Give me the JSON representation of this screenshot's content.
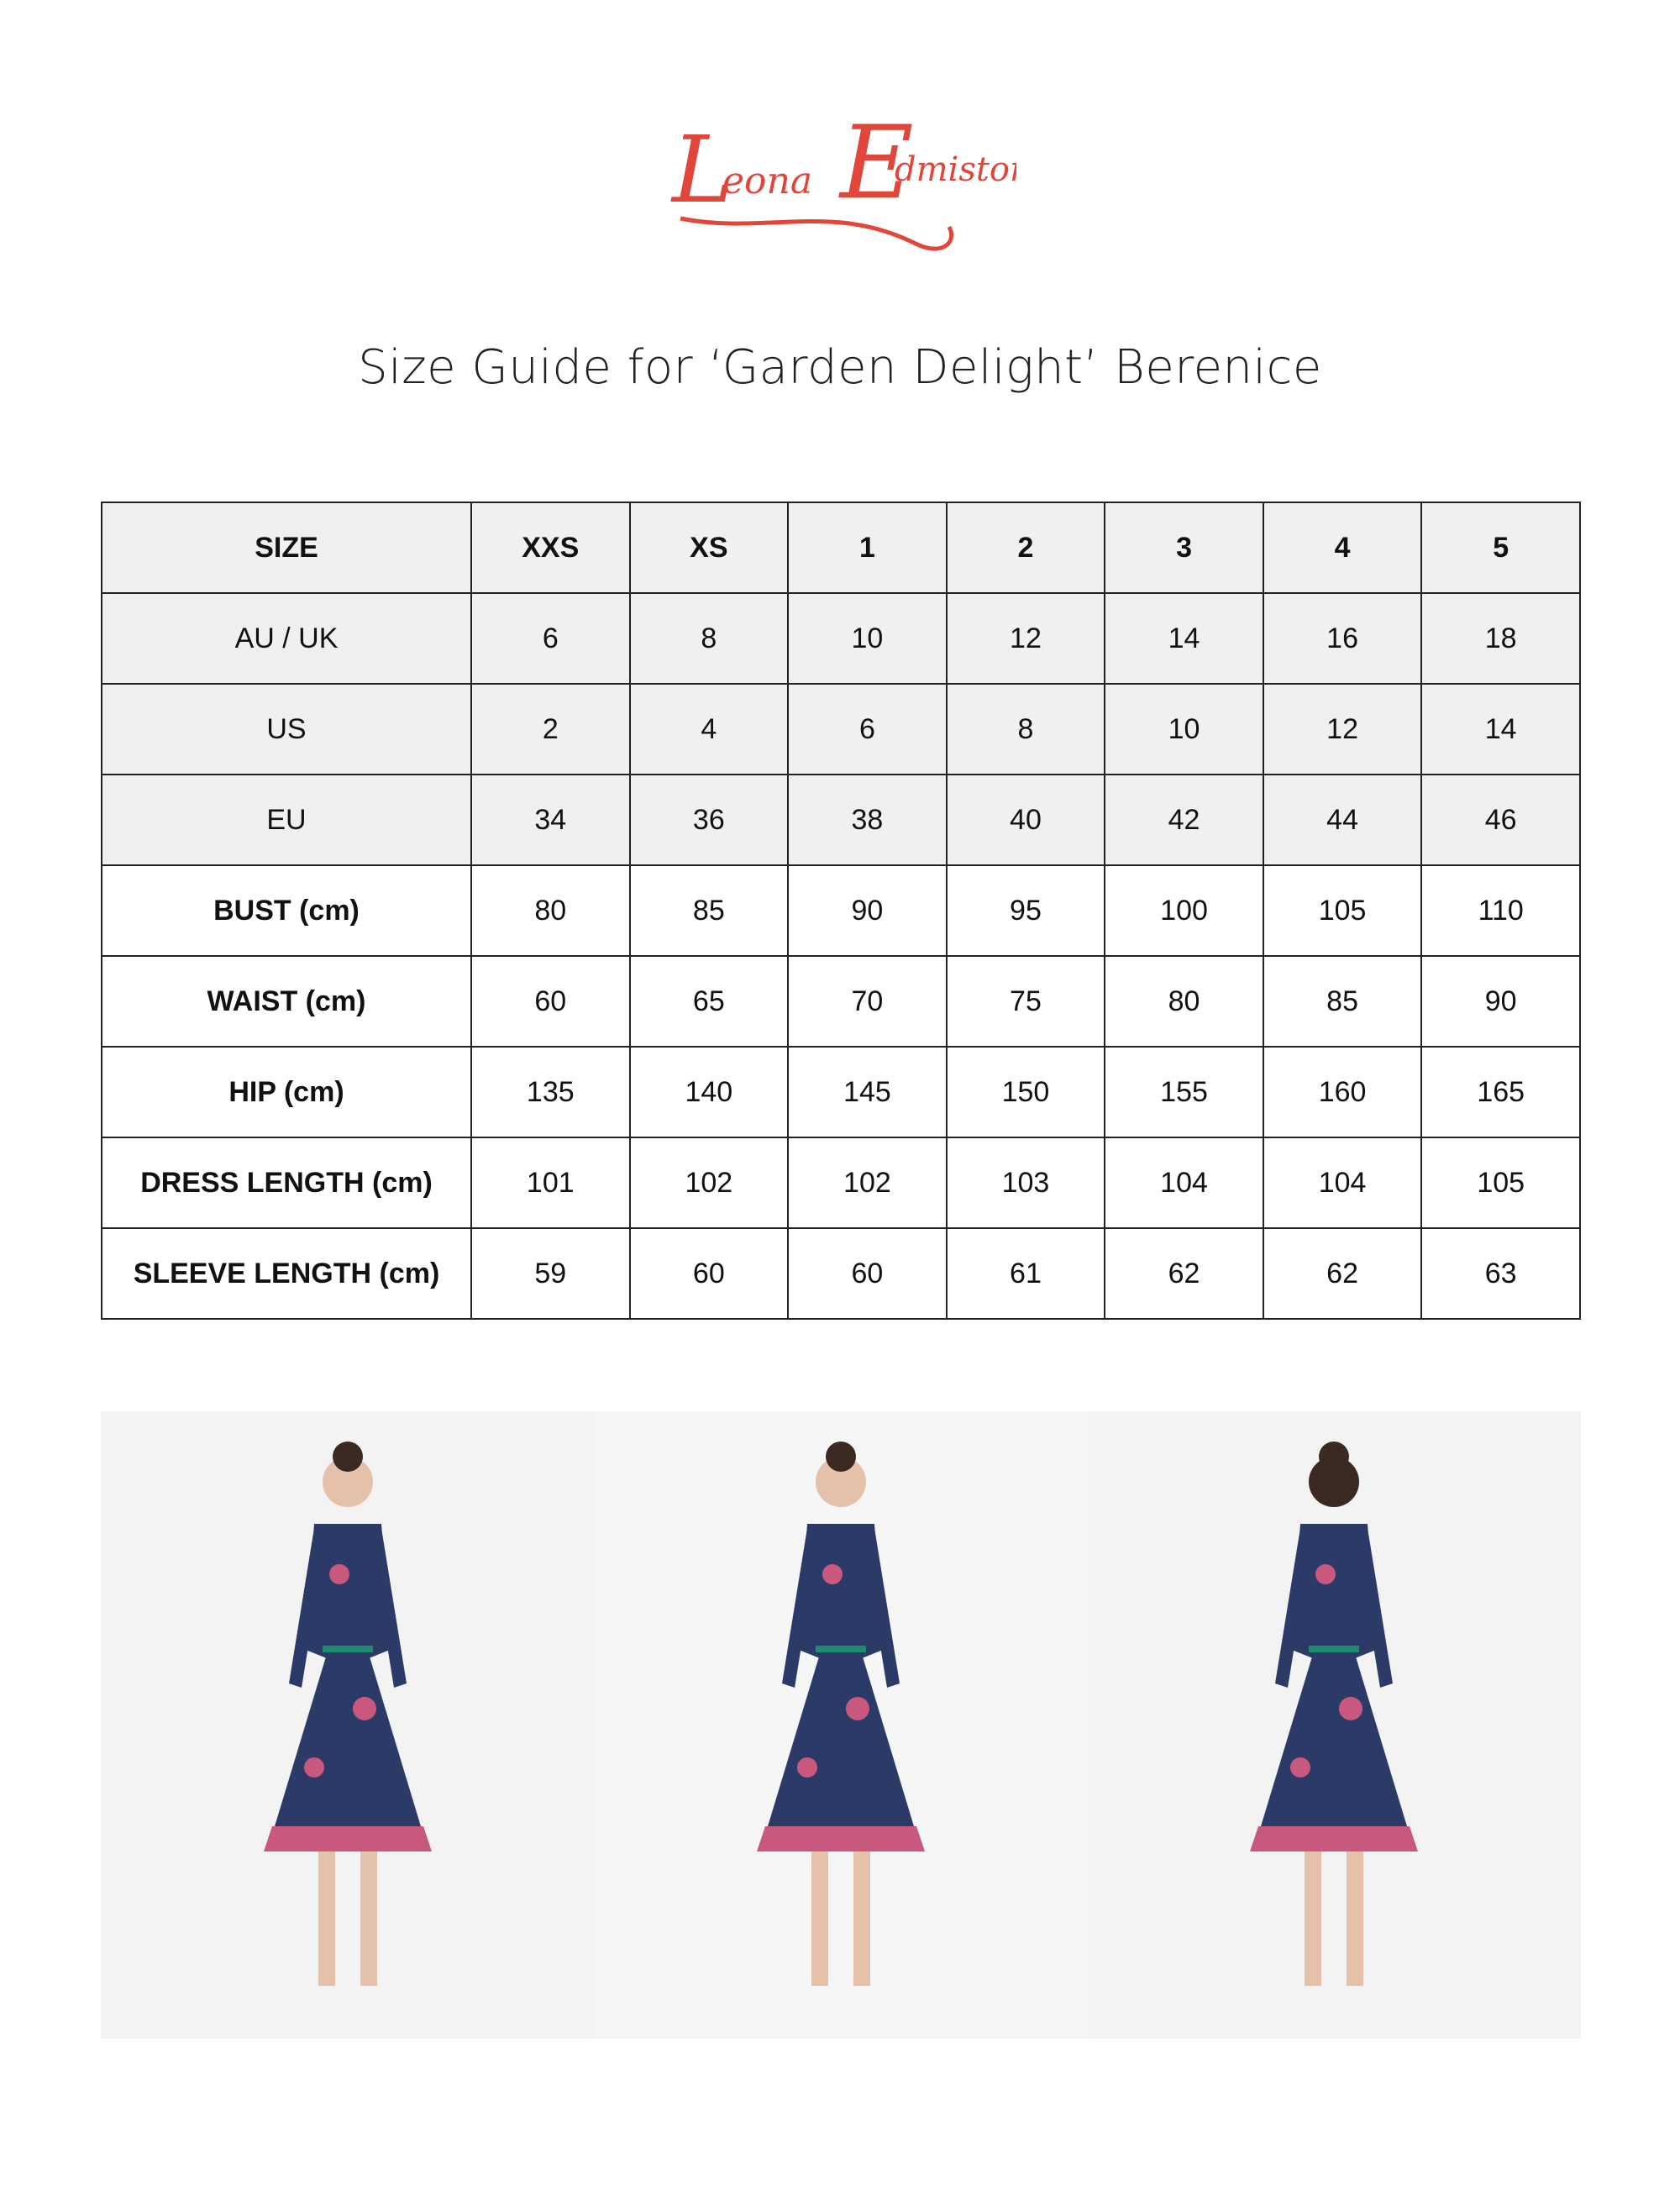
{
  "brand": {
    "logo_text": "Leona Edmiston",
    "color": "#e0463a"
  },
  "title": "Size Guide for ‘Garden Delight’ Berenice",
  "table": {
    "header": [
      "SIZE",
      "XXS",
      "XS",
      "1",
      "2",
      "3",
      "4",
      "5"
    ],
    "rows": [
      {
        "label": "AU / UK",
        "values": [
          "6",
          "8",
          "10",
          "12",
          "14",
          "16",
          "18"
        ]
      },
      {
        "label": "US",
        "values": [
          "2",
          "4",
          "6",
          "8",
          "10",
          "12",
          "14"
        ]
      },
      {
        "label": "EU",
        "values": [
          "34",
          "36",
          "38",
          "40",
          "42",
          "44",
          "46"
        ]
      },
      {
        "label": "BUST (cm)",
        "values": [
          "80",
          "85",
          "90",
          "95",
          "100",
          "105",
          "110"
        ]
      },
      {
        "label": "WAIST (cm)",
        "values": [
          "60",
          "65",
          "70",
          "75",
          "80",
          "85",
          "90"
        ]
      },
      {
        "label": "HIP (cm)",
        "values": [
          "135",
          "140",
          "145",
          "150",
          "155",
          "160",
          "165"
        ]
      },
      {
        "label": "DRESS LENGTH (cm)",
        "values": [
          "101",
          "102",
          "102",
          "103",
          "104",
          "104",
          "105"
        ]
      },
      {
        "label": "SLEEVE LENGTH (cm)",
        "values": [
          "59",
          "60",
          "60",
          "61",
          "62",
          "62",
          "63"
        ]
      }
    ]
  },
  "photos": [
    {
      "view": "front"
    },
    {
      "view": "side"
    },
    {
      "view": "back"
    }
  ],
  "colors": {
    "dress": "#2b3a66",
    "floral": "#c9587e",
    "trim": "#1f8a6e",
    "shaded_row": "#f0f0f0"
  }
}
